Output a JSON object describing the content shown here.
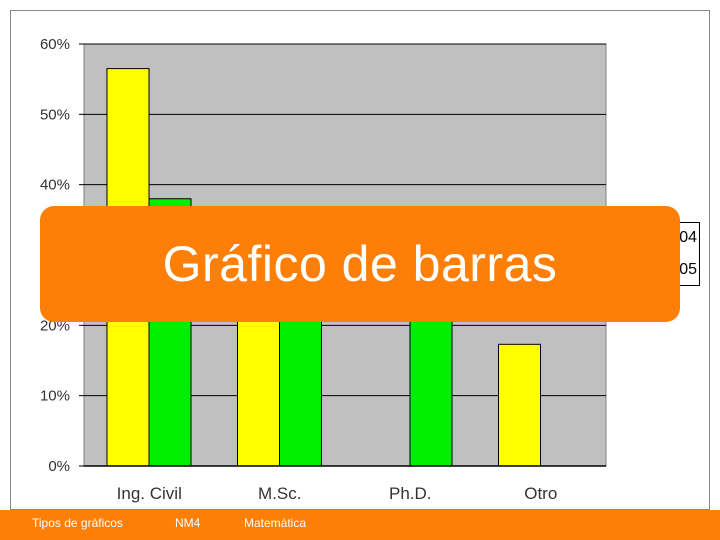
{
  "slide": {
    "title": "Gráfico de barras",
    "footer": {
      "left": "Tipos de gráficos",
      "center": "NM4",
      "right": "Matemática"
    },
    "colors": {
      "accent_orange": "#fd7f08",
      "plot_bg": "#c0c0c0",
      "series_1": "#ffff00",
      "series_2": "#00ee00"
    }
  },
  "legend_fragment": [
    "04",
    "05"
  ],
  "chart_data": {
    "type": "bar",
    "categories": [
      "Ing. Civil",
      "M.Sc.",
      "Ph.D.",
      "Otro"
    ],
    "series": [
      {
        "values": [
          56.5,
          30,
          0,
          17.3
        ],
        "color": "#ffff00"
      },
      {
        "values": [
          38,
          30,
          30,
          0
        ],
        "color": "#00ee00"
      }
    ],
    "y_ticks": [
      "0%",
      "10%",
      "20%",
      "30%",
      "40%",
      "50%",
      "60%"
    ],
    "ylim": [
      0,
      60
    ],
    "grid": true,
    "legend": "right"
  }
}
